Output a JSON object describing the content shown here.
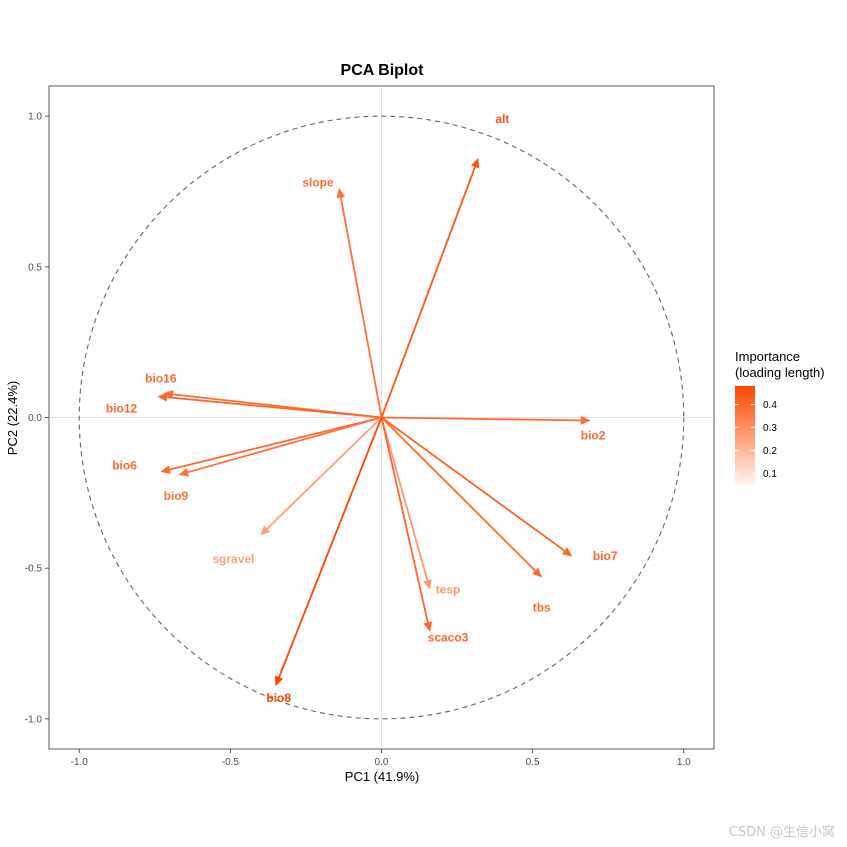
{
  "chart_data": {
    "type": "scatter",
    "title": "PCA Biplot",
    "xlabel": "PC1 (41.9%)",
    "ylabel": "PC2 (22.4%)",
    "xlim": [
      -1.1,
      1.1
    ],
    "ylim": [
      -1.1,
      1.1
    ],
    "x_ticks": [
      -1.0,
      -0.5,
      0.0,
      0.5,
      1.0
    ],
    "y_ticks": [
      -1.0,
      -0.5,
      0.0,
      0.5,
      1.0
    ],
    "x_tick_labels": [
      "-1.0",
      "-0.5",
      "0.0",
      "0.5",
      "1.0"
    ],
    "y_tick_labels": [
      "-1.0",
      "-0.5",
      "0.0",
      "0.5",
      "1.0"
    ],
    "unit_circle": true,
    "grid": false,
    "reference_lines": [
      0,
      0
    ],
    "color_scale": {
      "low": "#fff5f0",
      "high": "#ff4500"
    },
    "legend": {
      "title_line1": "Importance",
      "title_line2": "(loading length)",
      "placement": "right",
      "ticks": [
        0.1,
        0.2,
        0.3,
        0.4
      ],
      "tick_labels": [
        "0.1",
        "0.2",
        "0.3",
        "0.4"
      ],
      "range": [
        0.05,
        0.48
      ]
    },
    "loadings": [
      {
        "name": "alt",
        "x": 0.32,
        "y": 0.86,
        "label_x": 0.4,
        "label_y": 0.99,
        "importance": 0.44
      },
      {
        "name": "slope",
        "x": -0.14,
        "y": 0.76,
        "label_x": -0.21,
        "label_y": 0.78,
        "importance": 0.38
      },
      {
        "name": "bio16",
        "x": -0.72,
        "y": 0.08,
        "label_x": -0.73,
        "label_y": 0.13,
        "importance": 0.39
      },
      {
        "name": "bio12",
        "x": -0.74,
        "y": 0.07,
        "label_x": -0.86,
        "label_y": 0.03,
        "importance": 0.4
      },
      {
        "name": "bio2",
        "x": 0.69,
        "y": -0.01,
        "label_x": 0.7,
        "label_y": -0.06,
        "importance": 0.39
      },
      {
        "name": "bio6",
        "x": -0.73,
        "y": -0.18,
        "label_x": -0.85,
        "label_y": -0.16,
        "importance": 0.39
      },
      {
        "name": "bio9",
        "x": -0.67,
        "y": -0.19,
        "label_x": -0.68,
        "label_y": -0.26,
        "importance": 0.37
      },
      {
        "name": "sgravel",
        "x": -0.4,
        "y": -0.39,
        "label_x": -0.49,
        "label_y": -0.47,
        "importance": 0.26
      },
      {
        "name": "bio7",
        "x": 0.63,
        "y": -0.46,
        "label_x": 0.74,
        "label_y": -0.46,
        "importance": 0.41
      },
      {
        "name": "tesp",
        "x": 0.16,
        "y": -0.57,
        "label_x": 0.22,
        "label_y": -0.57,
        "importance": 0.28
      },
      {
        "name": "tbs",
        "x": 0.53,
        "y": -0.53,
        "label_x": 0.53,
        "label_y": -0.63,
        "importance": 0.39
      },
      {
        "name": "scaco3",
        "x": 0.16,
        "y": -0.71,
        "label_x": 0.22,
        "label_y": -0.73,
        "importance": 0.4
      },
      {
        "name": "bio8",
        "x": -0.35,
        "y": -0.89,
        "label_x": -0.34,
        "label_y": -0.93,
        "importance": 0.48
      }
    ]
  },
  "watermark": "CSDN @生信小窝"
}
